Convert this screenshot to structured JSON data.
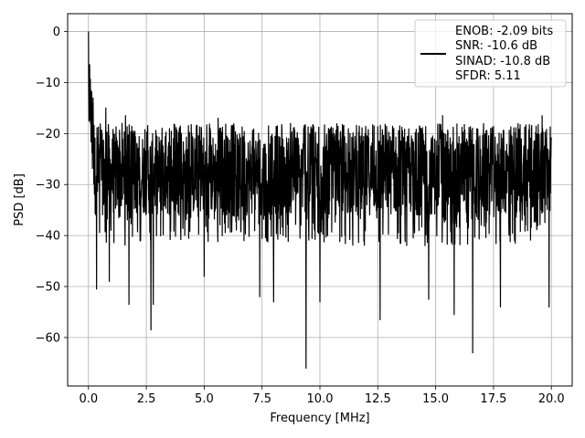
{
  "chart_data": {
    "type": "line",
    "title": "",
    "xlabel": "Frequency [MHz]",
    "ylabel": "PSD [dB]",
    "xlim": [
      -0.9,
      20.9
    ],
    "ylim": [
      -69.5,
      3.5
    ],
    "xticks": [
      0.0,
      2.5,
      5.0,
      7.5,
      10.0,
      12.5,
      15.0,
      17.5,
      20.0
    ],
    "xtick_labels": [
      "0.0",
      "2.5",
      "5.0",
      "7.5",
      "10.0",
      "12.5",
      "15.0",
      "17.5",
      "20.0"
    ],
    "yticks": [
      0,
      -10,
      -20,
      -30,
      -40,
      -50,
      -60
    ],
    "ytick_labels": [
      "0",
      "−10",
      "−20",
      "−30",
      "−40",
      "−50",
      "−60"
    ],
    "grid": true,
    "legend_position": "top-right",
    "legend_lines": [
      "ENOB: -2.09 bits",
      "SNR: -10.6 dB",
      "SINAD: -10.8 dB",
      "SFDR: 5.11"
    ],
    "line_color": "#000000",
    "series": [
      {
        "x_range": [
          0.0,
          20.0
        ],
        "approx_upper_envelope": -20,
        "approx_lower_envelope": -36,
        "peaks": [
          {
            "x": 0.0,
            "y": 0.0
          },
          {
            "x": 0.05,
            "y": -6.5
          },
          {
            "x": 0.1,
            "y": -11.5
          },
          {
            "x": 0.2,
            "y": -13.0
          },
          {
            "x": 0.75,
            "y": -15.0
          },
          {
            "x": 1.6,
            "y": -16.5
          },
          {
            "x": 5.6,
            "y": -17.0
          },
          {
            "x": 10.0,
            "y": -17.2
          },
          {
            "x": 15.3,
            "y": -16.5
          },
          {
            "x": 19.6,
            "y": -16.5
          }
        ],
        "dips": [
          {
            "x": 0.35,
            "y": -50.5
          },
          {
            "x": 0.9,
            "y": -49.0
          },
          {
            "x": 1.75,
            "y": -53.5
          },
          {
            "x": 2.7,
            "y": -58.5
          },
          {
            "x": 2.8,
            "y": -53.5
          },
          {
            "x": 5.0,
            "y": -48.0
          },
          {
            "x": 7.4,
            "y": -52.0
          },
          {
            "x": 8.0,
            "y": -53.0
          },
          {
            "x": 9.4,
            "y": -66.0
          },
          {
            "x": 10.0,
            "y": -53.0
          },
          {
            "x": 12.6,
            "y": -56.5
          },
          {
            "x": 14.7,
            "y": -52.5
          },
          {
            "x": 15.8,
            "y": -55.5
          },
          {
            "x": 16.6,
            "y": -63.0
          },
          {
            "x": 17.8,
            "y": -54.0
          },
          {
            "x": 19.9,
            "y": -54.0
          }
        ]
      }
    ]
  }
}
